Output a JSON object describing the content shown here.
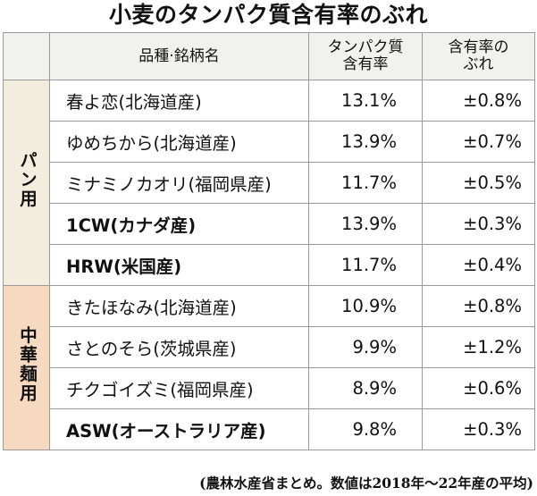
{
  "title": "小麦のタンパク質含有率のぶれ",
  "table": {
    "headers": {
      "variety": "品種·銘柄名",
      "protein_line1": "タンパク質",
      "protein_line2": "含有率",
      "variation_line1": "含有率の",
      "variation_line2": "ぶれ"
    },
    "groups": [
      {
        "label": "パン用",
        "rows": [
          {
            "name": "春よ恋(北海道産)",
            "protein": "13.1%",
            "variation": "±0.8%",
            "bold": false
          },
          {
            "name": "ゆめちから(北海道産)",
            "protein": "13.9%",
            "variation": "±0.7%",
            "bold": false
          },
          {
            "name": "ミナミノカオリ(福岡県産)",
            "protein": "11.7%",
            "variation": "±0.5%",
            "bold": false
          },
          {
            "name": "1CW(カナダ産)",
            "protein": "13.9%",
            "variation": "±0.3%",
            "bold": true
          },
          {
            "name": "HRW(米国産)",
            "protein": "11.7%",
            "variation": "±0.4%",
            "bold": true
          }
        ]
      },
      {
        "label": "中華麺用",
        "rows": [
          {
            "name": "きたほなみ(北海道産)",
            "protein": "10.9%",
            "variation": "±0.8%",
            "bold": false
          },
          {
            "name": "さとのそら(茨城県産)",
            "protein": "9.9%",
            "variation": "±1.2%",
            "bold": false
          },
          {
            "name": "チクゴイズミ(福岡県産)",
            "protein": "8.9%",
            "variation": "±0.6%",
            "bold": false
          },
          {
            "name": "ASW(オーストラリア産)",
            "protein": "9.8%",
            "variation": "±0.3%",
            "bold": true
          }
        ]
      }
    ]
  },
  "source": "(農林水産省まとめ。数値は2018年～22年産の平均)"
}
